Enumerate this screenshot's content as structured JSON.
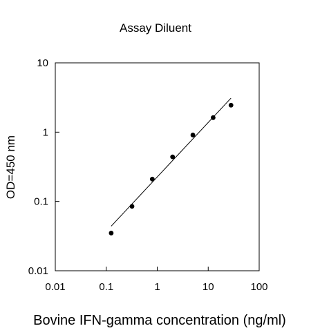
{
  "chart_data": {
    "type": "scatter",
    "title": "Assay Diluent",
    "xlabel": "Bovine IFN-gamma concentration (ng/ml)",
    "ylabel": "OD=450 nm",
    "x_scale": "log",
    "y_scale": "log",
    "xlim": [
      0.01,
      100
    ],
    "ylim": [
      0.01,
      10
    ],
    "x_ticks": [
      0.01,
      0.1,
      1,
      10,
      100
    ],
    "x_tick_labels": [
      "0.01",
      "0.1",
      "1",
      "10",
      "100"
    ],
    "y_ticks": [
      0.01,
      0.1,
      1,
      10
    ],
    "y_tick_labels": [
      "0.01",
      "0.1",
      "1",
      "10"
    ],
    "grid": false,
    "legend": "none",
    "series": [
      {
        "points": [
          {
            "x": 0.125,
            "y": 0.035
          },
          {
            "x": 0.32,
            "y": 0.085
          },
          {
            "x": 0.8,
            "y": 0.21
          },
          {
            "x": 2.0,
            "y": 0.44
          },
          {
            "x": 5.0,
            "y": 0.91
          },
          {
            "x": 12.5,
            "y": 1.62
          },
          {
            "x": 28.0,
            "y": 2.45
          }
        ],
        "color": "#000000"
      }
    ],
    "fit_line": {
      "type": "log-log linear",
      "x_start": 0.125,
      "y_start": 0.044,
      "x_end": 28.0,
      "y_end": 3.1,
      "color": "#000000"
    }
  }
}
